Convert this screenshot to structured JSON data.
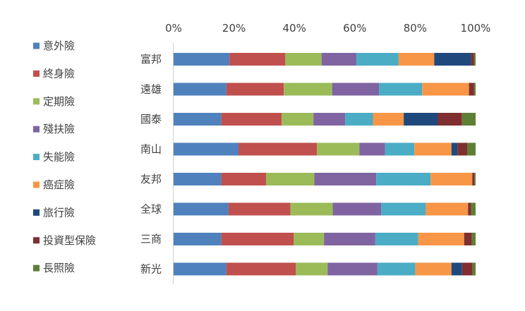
{
  "chart_data": {
    "type": "bar",
    "orientation": "horizontal",
    "stacked": "percent",
    "title": "",
    "xlabel": "",
    "ylabel": "",
    "xlim": [
      0,
      100
    ],
    "x_ticks": [
      "0%",
      "20%",
      "40%",
      "60%",
      "80%",
      "100%"
    ],
    "x_axis_position": "top",
    "grid": false,
    "legend_position": "left",
    "categories": [
      "富邦",
      "遠雄",
      "國泰",
      "南山",
      "友邦",
      "全球",
      "三商",
      "新光"
    ],
    "series": [
      {
        "name": "意外險",
        "color": "#4F81BD",
        "values": [
          18.5,
          17.5,
          15.8,
          21.5,
          15.8,
          18.2,
          15.8,
          17.5
        ]
      },
      {
        "name": "終身險",
        "color": "#C0504D",
        "values": [
          18.5,
          19.0,
          20.0,
          26.0,
          14.8,
          20.5,
          24.0,
          23.0
        ]
      },
      {
        "name": "定期險",
        "color": "#9BBB59",
        "values": [
          12.0,
          16.0,
          10.5,
          14.0,
          16.0,
          14.0,
          10.0,
          10.5
        ]
      },
      {
        "name": "殘扶險",
        "color": "#8064A2",
        "values": [
          11.5,
          15.5,
          10.5,
          8.5,
          20.5,
          16.0,
          17.0,
          16.5
        ]
      },
      {
        "name": "失能險",
        "color": "#4BACC6",
        "values": [
          14.0,
          14.3,
          9.2,
          9.7,
          18.0,
          14.8,
          14.2,
          12.5
        ]
      },
      {
        "name": "癌症險",
        "color": "#F79646",
        "values": [
          11.8,
          15.5,
          10.2,
          12.3,
          13.8,
          14.0,
          15.2,
          12.0
        ]
      },
      {
        "name": "旅行險",
        "color": "#1F497D",
        "values": [
          12.2,
          0.0,
          11.3,
          2.0,
          0.0,
          0.0,
          0.0,
          3.5
        ]
      },
      {
        "name": "投資型保險",
        "color": "#7F2F2F",
        "values": [
          1.0,
          1.7,
          8.0,
          3.2,
          0.7,
          1.0,
          2.5,
          3.5
        ]
      },
      {
        "name": "長照險",
        "color": "#5E7F36",
        "values": [
          0.5,
          0.5,
          4.5,
          2.8,
          0.4,
          1.5,
          1.3,
          1.0
        ]
      }
    ]
  }
}
